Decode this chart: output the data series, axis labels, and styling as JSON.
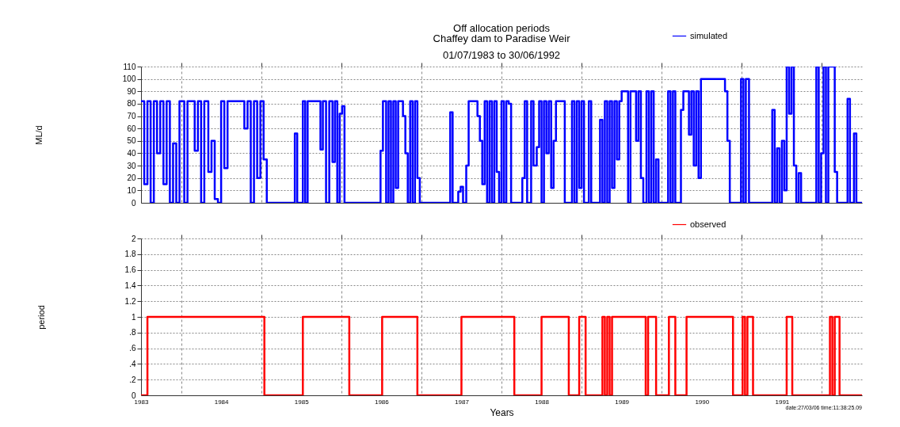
{
  "chart_data": [
    {
      "type": "step",
      "title": "Off allocation periods\nChaffey dam to Paradise Weir",
      "subtitle": "01/07/1983 to 30/06/1992",
      "ylabel": "ML/d",
      "xlim": [
        1983,
        1992
      ],
      "xticks": [
        {
          "value": 1983.5,
          "label": null
        },
        {
          "value": 1984.5,
          "label": null
        },
        {
          "value": 1985.5,
          "label": null
        },
        {
          "value": 1986.5,
          "label": null
        },
        {
          "value": 1987.5,
          "label": null
        },
        {
          "value": 1988.5,
          "label": null
        },
        {
          "value": 1989.5,
          "label": null
        },
        {
          "value": 1990.5,
          "label": null
        },
        {
          "value": 1991.5,
          "label": null
        }
      ],
      "ylim": [
        0,
        110
      ],
      "yticks": [
        0,
        10,
        20,
        30,
        40,
        50,
        60,
        70,
        80,
        90,
        100,
        110
      ],
      "grid": true,
      "legend": "top right",
      "tick_labels": "y",
      "series": [
        {
          "name": "simulated",
          "color": "#0000ff",
          "x": [
            1983,
            1983.04,
            1983.08,
            1983.12,
            1983.16,
            1983.2,
            1983.24,
            1983.28,
            1983.32,
            1983.36,
            1983.4,
            1983.44,
            1983.48,
            1983.54,
            1983.58,
            1983.67,
            1983.71,
            1983.75,
            1983.79,
            1983.84,
            1983.88,
            1983.92,
            1983.96,
            1984,
            1984.04,
            1984.08,
            1984.29,
            1984.33,
            1984.37,
            1984.41,
            1984.45,
            1984.49,
            1984.53,
            1984.57,
            1984.92,
            1984.95,
            1985.02,
            1985.05,
            1985.08,
            1985.24,
            1985.27,
            1985.31,
            1985.35,
            1985.39,
            1985.42,
            1985.45,
            1985.48,
            1985.51,
            1985.54,
            1985.99,
            1986.02,
            1986.06,
            1986.09,
            1986.12,
            1986.15,
            1986.18,
            1986.21,
            1986.27,
            1986.3,
            1986.33,
            1986.36,
            1986.39,
            1986.42,
            1986.45,
            1986.48,
            1986.86,
            1986.89,
            1986.96,
            1986.99,
            1987.02,
            1987.06,
            1987.09,
            1987.2,
            1987.23,
            1987.26,
            1987.29,
            1987.32,
            1987.35,
            1987.38,
            1987.41,
            1987.44,
            1987.47,
            1987.5,
            1987.53,
            1987.56,
            1987.59,
            1987.62,
            1987.76,
            1987.79,
            1987.82,
            1987.87,
            1987.9,
            1987.94,
            1987.97,
            1988,
            1988.03,
            1988.06,
            1988.09,
            1988.12,
            1988.15,
            1988.18,
            1988.29,
            1988.38,
            1988.41,
            1988.44,
            1988.47,
            1988.5,
            1988.53,
            1988.59,
            1988.62,
            1988.73,
            1988.76,
            1988.79,
            1988.82,
            1988.85,
            1988.88,
            1988.91,
            1988.94,
            1988.97,
            1989,
            1989.08,
            1989.11,
            1989.18,
            1989.21,
            1989.24,
            1989.27,
            1989.31,
            1989.34,
            1989.37,
            1989.4,
            1989.43,
            1989.46,
            1989.58,
            1989.61,
            1989.64,
            1989.67,
            1989.74,
            1989.77,
            1989.84,
            1989.87,
            1989.9,
            1989.93,
            1989.96,
            1989.99,
            1990.29,
            1990.32,
            1990.35,
            1990.49,
            1990.52,
            1990.55,
            1990.59,
            1990.88,
            1990.91,
            1990.94,
            1990.97,
            1991,
            1991.03,
            1991.06,
            1991.09,
            1991.12,
            1991.15,
            1991.18,
            1991.21,
            1991.24,
            1991.43,
            1991.46,
            1991.49,
            1991.52,
            1991.55,
            1991.58,
            1991.66,
            1991.69,
            1991.82,
            1991.85,
            1991.9,
            1991.93,
            1992
          ],
          "values": [
            82,
            15,
            82,
            0,
            82,
            40,
            82,
            15,
            82,
            0,
            48,
            0,
            82,
            0,
            82,
            42,
            82,
            0,
            82,
            25,
            50,
            3,
            0,
            82,
            28,
            82,
            60,
            82,
            0,
            82,
            20,
            82,
            35,
            0,
            56,
            0,
            82,
            0,
            82,
            43,
            82,
            0,
            82,
            33,
            82,
            0,
            72,
            78,
            0,
            42,
            82,
            0,
            82,
            0,
            82,
            12,
            82,
            70,
            40,
            0,
            82,
            0,
            82,
            20,
            0,
            73,
            0,
            9,
            13,
            0,
            30,
            82,
            70,
            50,
            15,
            82,
            0,
            82,
            0,
            82,
            25,
            0,
            82,
            0,
            82,
            80,
            0,
            20,
            82,
            0,
            82,
            30,
            45,
            82,
            0,
            82,
            40,
            82,
            12,
            50,
            82,
            0,
            82,
            0,
            82,
            12,
            82,
            0,
            82,
            0,
            67,
            0,
            82,
            0,
            82,
            12,
            82,
            35,
            82,
            90,
            0,
            90,
            50,
            90,
            20,
            0,
            90,
            0,
            90,
            0,
            35,
            0,
            90,
            0,
            90,
            0,
            75,
            90,
            55,
            90,
            30,
            90,
            20,
            100,
            90,
            50,
            0,
            100,
            0,
            100,
            0,
            75,
            0,
            44,
            0,
            50,
            10,
            110,
            72,
            110,
            30,
            0,
            24,
            0,
            110,
            0,
            40,
            110,
            0,
            110,
            25,
            0,
            84,
            0,
            56,
            0,
            0
          ]
        }
      ]
    },
    {
      "type": "step",
      "ylabel": "period",
      "xlabel": "Years",
      "xlim": [
        1983,
        1992
      ],
      "xticks": [
        1983,
        {
          "value": 1983.5,
          "label": null
        },
        1984,
        {
          "value": 1984.5,
          "label": null
        },
        1985,
        {
          "value": 1985.5,
          "label": null
        },
        1986,
        {
          "value": 1986.5,
          "label": null
        },
        1987,
        {
          "value": 1987.5,
          "label": null
        },
        1988,
        {
          "value": 1988.5,
          "label": null
        },
        1989,
        {
          "value": 1989.5,
          "label": null
        },
        1990,
        {
          "value": 1990.5,
          "label": null
        },
        1991,
        {
          "value": 1991.5,
          "label": null
        }
      ],
      "ylim": [
        0,
        2
      ],
      "yticks": [
        0,
        {
          "value": 0.2,
          "label": ".2"
        },
        {
          "value": 0.4,
          "label": ".4"
        },
        {
          "value": 0.6,
          "label": ".6"
        },
        {
          "value": 0.8,
          "label": ".8"
        },
        1,
        1.2,
        1.4,
        1.6,
        1.8,
        2
      ],
      "grid": true,
      "legend": "top right",
      "annotations": [
        "date:27/03/06 time:11:38:25.09"
      ],
      "series": [
        {
          "name": "observed",
          "color": "#ff0000",
          "x": [
            1983,
            1983.08,
            1984.54,
            1985.02,
            1985.6,
            1986.01,
            1986.45,
            1987,
            1987.66,
            1988,
            1988.34,
            1988.47,
            1988.55,
            1988.76,
            1988.79,
            1988.82,
            1988.85,
            1988.88,
            1989.3,
            1989.33,
            1989.43,
            1989.59,
            1989.67,
            1989.81,
            1990.39,
            1990.51,
            1990.54,
            1990.57,
            1990.64,
            1991.06,
            1991.13,
            1991.6,
            1991.63,
            1991.66,
            1991.72,
            1992
          ],
          "values": [
            0,
            1,
            0,
            1,
            0,
            1,
            0,
            1,
            0,
            1,
            0,
            1,
            0,
            1,
            0,
            1,
            0,
            1,
            0,
            1,
            0,
            1,
            0,
            1,
            0,
            1,
            0,
            1,
            0,
            1,
            0,
            1,
            0,
            1,
            0,
            0
          ]
        }
      ]
    }
  ]
}
